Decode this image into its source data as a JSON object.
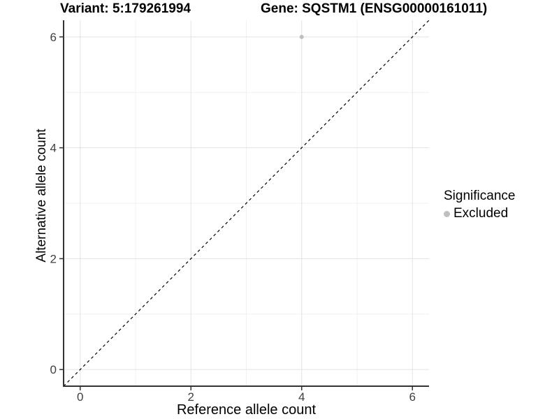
{
  "chart_data": {
    "type": "scatter",
    "titles": {
      "left": "Variant: 5:179261994",
      "right": "Gene: SQSTM1 (ENSG00000161011)"
    },
    "xlabel": "Reference allele count",
    "ylabel": "Alternative allele count",
    "xlim": [
      -0.3,
      6.3
    ],
    "ylim": [
      -0.3,
      6.3
    ],
    "xticks": [
      0,
      2,
      4,
      6
    ],
    "yticks": [
      0,
      2,
      4,
      6
    ],
    "xticks_minor": [
      1,
      3,
      5
    ],
    "yticks_minor": [
      1,
      3,
      5
    ],
    "grid": "major+minor",
    "points": [
      {
        "x": 4,
        "y": 6,
        "series": "Excluded"
      }
    ],
    "reference_line": {
      "type": "identity",
      "equation": "y = x",
      "style": "dashed"
    },
    "legend": {
      "position": "right",
      "title": "Significance",
      "items": [
        {
          "label": "Excluded",
          "color": "#bfbfbf"
        }
      ]
    },
    "colors": {
      "point": "#bfbfbf",
      "grid_major": "#e3e3e3",
      "grid_minor": "#f1f1f1",
      "axis_line": "#333333",
      "tick_text": "#404040",
      "reference_line": "#000000",
      "background": "#ffffff"
    }
  }
}
